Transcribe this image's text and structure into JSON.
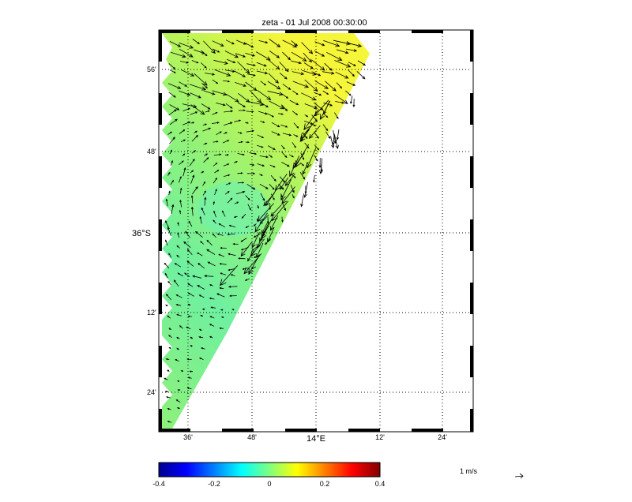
{
  "title": "zeta - 01 Jul 2008 00:30:00",
  "lat_labels": [
    "56'",
    "48'",
    "36°S",
    "12'",
    "24'"
  ],
  "lon_labels": [
    "36'",
    "48'",
    "14°E",
    "12'",
    "24'"
  ],
  "colorbar": {
    "ticks": [
      "-0.4",
      "-0.2",
      "0",
      "0.2",
      "0.4"
    ],
    "range": [
      -0.4,
      0.4
    ],
    "colors": [
      "#00008f",
      "#0000ff",
      "#00ffff",
      "#ffff00",
      "#ff0000",
      "#800000"
    ]
  },
  "vector_scale": {
    "label": "1 m/s",
    "value": 1
  },
  "field": {
    "colors": {
      "ocean_low": "#6ff28e",
      "ocean_mid": "#8ff56e",
      "ocean_high": "#f2f53a"
    }
  },
  "icons": {
    "scale_arrow": "arrow-right-icon"
  }
}
